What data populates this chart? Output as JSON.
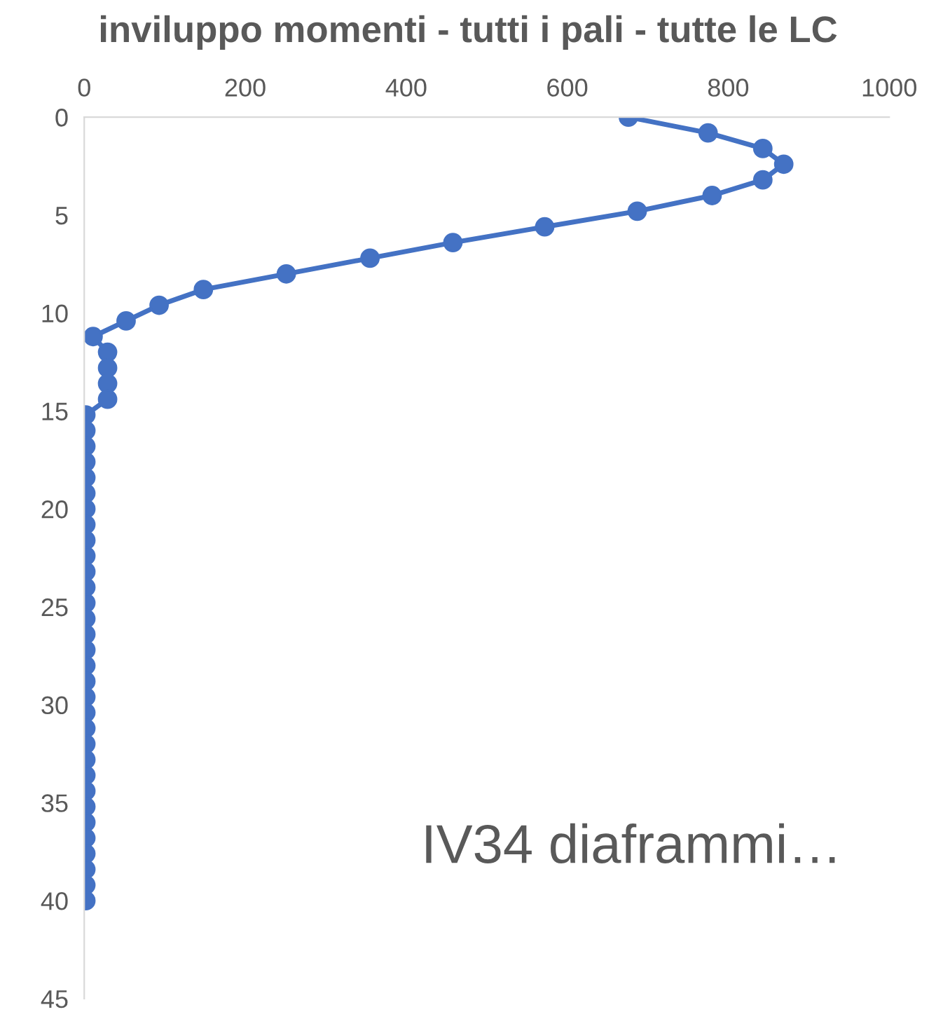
{
  "chart_data": {
    "type": "line",
    "title": "inviluppo momenti - tutti i pali - tutte le LC",
    "x": [
      676,
      775,
      843,
      869,
      843,
      780,
      687,
      572,
      458,
      355,
      251,
      148,
      93,
      52,
      11,
      29,
      29,
      29,
      29,
      2,
      2,
      2,
      2,
      2,
      2,
      2,
      2,
      2,
      2,
      2,
      2,
      2,
      2,
      2,
      2,
      2,
      2,
      2,
      2,
      2,
      2,
      2,
      2,
      2,
      2,
      2,
      2,
      2,
      2,
      2,
      2
    ],
    "series": [
      {
        "color": "#4472c4",
        "values": [
          0,
          0.8,
          1.6,
          2.4,
          3.2,
          4.0,
          4.8,
          5.6,
          6.4,
          7.2,
          8.0,
          8.8,
          9.6,
          10.4,
          11.2,
          12.0,
          12.8,
          13.6,
          14.4,
          15.2,
          16.0,
          16.8,
          17.6,
          18.4,
          19.2,
          20.0,
          20.8,
          21.6,
          22.4,
          23.2,
          24.0,
          24.8,
          25.6,
          26.4,
          27.2,
          28.0,
          28.8,
          29.6,
          30.4,
          31.2,
          32.0,
          32.8,
          33.6,
          34.4,
          35.2,
          36.0,
          36.8,
          37.6,
          38.4,
          39.2,
          40.0
        ]
      }
    ],
    "xlim": [
      0,
      1000
    ],
    "xticks": [
      0,
      200,
      400,
      600,
      800,
      1000
    ],
    "ylim": [
      45,
      0
    ],
    "yticks": [
      0,
      5,
      10,
      15,
      20,
      25,
      30,
      35,
      40,
      45
    ],
    "marker": "circle",
    "line_style": "solid",
    "grid": false,
    "legend": false,
    "annotations": [
      "IV34 diaframmi…"
    ]
  }
}
